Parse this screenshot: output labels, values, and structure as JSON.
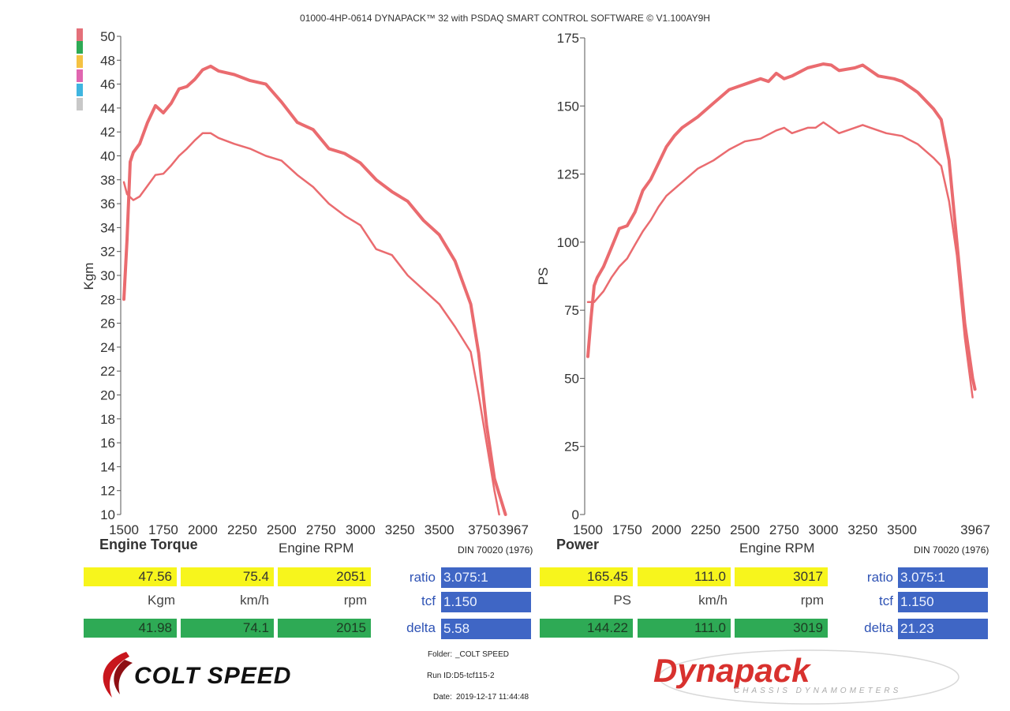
{
  "header": "01000-4HP-0614 DYNAPACK™ 32 with PSDAQ SMART CONTROL SOFTWARE © V1.100AY9H",
  "swatches": [
    "#e4707a",
    "#2eaa55",
    "#f5c243",
    "#e066b0",
    "#3fb5e0",
    "#c8c8c8"
  ],
  "colors": {
    "curve": "#ea6b6f",
    "yellow": "#f7f51c",
    "green": "#2eaa55",
    "blue": "#3f66c5"
  },
  "left": {
    "title": "Engine Torque",
    "xlabel": "Engine RPM",
    "din": "DIN 70020 (1976)",
    "row1": [
      "47.56",
      "75.4",
      "2051"
    ],
    "units": [
      "Kgm",
      "km/h",
      "rpm"
    ],
    "row2": [
      "41.98",
      "74.1",
      "2015"
    ],
    "info": {
      "ratio_label": "ratio",
      "ratio": "3.075:1",
      "tcf_label": "tcf",
      "tcf": "1.150",
      "delta_label": "delta",
      "delta": "5.58"
    }
  },
  "right": {
    "title": "Power",
    "xlabel": "Engine RPM",
    "din": "DIN 70020 (1976)",
    "row1": [
      "165.45",
      "111.0",
      "3017"
    ],
    "units": [
      "PS",
      "km/h",
      "rpm"
    ],
    "row2": [
      "144.22",
      "111.0",
      "3019"
    ],
    "info": {
      "ratio_label": "ratio",
      "ratio": "3.075:1",
      "tcf_label": "tcf",
      "tcf": "1.150",
      "delta_label": "delta",
      "delta": "21.23"
    }
  },
  "footer": {
    "folder_label": "Folder:",
    "folder": "_COLT SPEED",
    "run_label": "Run ID:",
    "run": "D5-tcf115-2",
    "date_label": "Date:",
    "date": "2019-12-17 11:44:48",
    "colt_logo": "COLT SPEED",
    "dyna_logo": "Dynapack",
    "dyna_tagline": "CHASSIS DYNAMOMETERS"
  },
  "chart_data": [
    {
      "type": "line",
      "ylabel": "Kgm",
      "xlabel": "Engine RPM",
      "xlim": [
        1500,
        3967
      ],
      "ylim": [
        10,
        50
      ],
      "xticks": [
        1500,
        1750,
        2000,
        2250,
        2500,
        2750,
        3000,
        3250,
        3500,
        3750,
        3967
      ],
      "yticks": [
        10,
        12,
        14,
        16,
        18,
        20,
        22,
        24,
        26,
        28,
        30,
        32,
        34,
        36,
        38,
        40,
        42,
        44,
        46,
        48,
        50
      ],
      "series": [
        {
          "values": [
            [
              1500,
              28.0
            ],
            [
              1520,
              33.0
            ],
            [
              1540,
              39.5
            ],
            [
              1560,
              40.3
            ],
            [
              1600,
              41.0
            ],
            [
              1650,
              42.8
            ],
            [
              1700,
              44.2
            ],
            [
              1750,
              43.6
            ],
            [
              1800,
              44.4
            ],
            [
              1850,
              45.6
            ],
            [
              1900,
              45.8
            ],
            [
              1950,
              46.4
            ],
            [
              2000,
              47.2
            ],
            [
              2050,
              47.5
            ],
            [
              2100,
              47.1
            ],
            [
              2200,
              46.8
            ],
            [
              2300,
              46.3
            ],
            [
              2400,
              46.0
            ],
            [
              2500,
              44.5
            ],
            [
              2600,
              42.8
            ],
            [
              2700,
              42.2
            ],
            [
              2800,
              40.6
            ],
            [
              2900,
              40.2
            ],
            [
              3000,
              39.4
            ],
            [
              3100,
              38.0
            ],
            [
              3200,
              37.0
            ],
            [
              3300,
              36.2
            ],
            [
              3400,
              34.6
            ],
            [
              3500,
              33.4
            ],
            [
              3600,
              31.2
            ],
            [
              3700,
              27.6
            ],
            [
              3750,
              23.5
            ],
            [
              3800,
              17.5
            ],
            [
              3850,
              13.0
            ],
            [
              3920,
              10.0
            ]
          ]
        },
        {
          "values": [
            [
              1500,
              37.8
            ],
            [
              1520,
              36.8
            ],
            [
              1560,
              36.3
            ],
            [
              1600,
              36.6
            ],
            [
              1650,
              37.5
            ],
            [
              1700,
              38.4
            ],
            [
              1750,
              38.5
            ],
            [
              1800,
              39.2
            ],
            [
              1850,
              40.0
            ],
            [
              1900,
              40.6
            ],
            [
              1950,
              41.3
            ],
            [
              2000,
              41.9
            ],
            [
              2050,
              41.9
            ],
            [
              2100,
              41.5
            ],
            [
              2200,
              41.0
            ],
            [
              2300,
              40.6
            ],
            [
              2400,
              40.0
            ],
            [
              2500,
              39.6
            ],
            [
              2600,
              38.4
            ],
            [
              2700,
              37.4
            ],
            [
              2800,
              36.0
            ],
            [
              2900,
              35.0
            ],
            [
              3000,
              34.2
            ],
            [
              3100,
              32.2
            ],
            [
              3200,
              31.7
            ],
            [
              3300,
              30.0
            ],
            [
              3400,
              28.8
            ],
            [
              3500,
              27.6
            ],
            [
              3600,
              25.7
            ],
            [
              3700,
              23.6
            ],
            [
              3750,
              20.0
            ],
            [
              3800,
              16.0
            ],
            [
              3850,
              12.0
            ],
            [
              3880,
              10.0
            ]
          ]
        }
      ]
    },
    {
      "type": "line",
      "ylabel": "PS",
      "xlabel": "Engine RPM",
      "xlim": [
        1500,
        3967
      ],
      "ylim": [
        0,
        175
      ],
      "xticks": [
        1500,
        1750,
        2000,
        2250,
        2500,
        2750,
        3000,
        3250,
        3500,
        3967
      ],
      "yticks": [
        0,
        25,
        50,
        75,
        100,
        125,
        150,
        175
      ],
      "series": [
        {
          "values": [
            [
              1500,
              58
            ],
            [
              1520,
              72
            ],
            [
              1540,
              84
            ],
            [
              1560,
              87
            ],
            [
              1600,
              91
            ],
            [
              1650,
              98
            ],
            [
              1700,
              105
            ],
            [
              1750,
              106
            ],
            [
              1800,
              111
            ],
            [
              1850,
              119
            ],
            [
              1900,
              123
            ],
            [
              1950,
              129
            ],
            [
              2000,
              135
            ],
            [
              2050,
              139
            ],
            [
              2100,
              142
            ],
            [
              2200,
              146
            ],
            [
              2300,
              151
            ],
            [
              2400,
              156
            ],
            [
              2450,
              157
            ],
            [
              2500,
              158
            ],
            [
              2550,
              159
            ],
            [
              2600,
              160
            ],
            [
              2650,
              159
            ],
            [
              2700,
              162
            ],
            [
              2750,
              160
            ],
            [
              2800,
              161
            ],
            [
              2900,
              164
            ],
            [
              3000,
              165.4
            ],
            [
              3050,
              165
            ],
            [
              3100,
              163
            ],
            [
              3200,
              164
            ],
            [
              3250,
              165
            ],
            [
              3300,
              163
            ],
            [
              3350,
              161
            ],
            [
              3450,
              160
            ],
            [
              3500,
              159
            ],
            [
              3600,
              155
            ],
            [
              3700,
              149
            ],
            [
              3750,
              145
            ],
            [
              3800,
              130
            ],
            [
              3850,
              100
            ],
            [
              3900,
              70
            ],
            [
              3950,
              50
            ],
            [
              3965,
              46
            ]
          ]
        },
        {
          "values": [
            [
              1500,
              78
            ],
            [
              1540,
              78
            ],
            [
              1600,
              82
            ],
            [
              1650,
              87
            ],
            [
              1700,
              91
            ],
            [
              1750,
              94
            ],
            [
              1800,
              99
            ],
            [
              1850,
              104
            ],
            [
              1900,
              108
            ],
            [
              1950,
              113
            ],
            [
              2000,
              117
            ],
            [
              2100,
              122
            ],
            [
              2200,
              127
            ],
            [
              2300,
              130
            ],
            [
              2400,
              134
            ],
            [
              2500,
              137
            ],
            [
              2600,
              138
            ],
            [
              2700,
              141
            ],
            [
              2750,
              142
            ],
            [
              2800,
              140
            ],
            [
              2850,
              141
            ],
            [
              2900,
              142
            ],
            [
              2950,
              142
            ],
            [
              3000,
              144
            ],
            [
              3050,
              142
            ],
            [
              3100,
              140
            ],
            [
              3200,
              142
            ],
            [
              3250,
              143
            ],
            [
              3300,
              142
            ],
            [
              3400,
              140
            ],
            [
              3500,
              139
            ],
            [
              3600,
              136
            ],
            [
              3700,
              131
            ],
            [
              3750,
              128
            ],
            [
              3800,
              115
            ],
            [
              3850,
              95
            ],
            [
              3900,
              65
            ],
            [
              3950,
              43
            ]
          ]
        }
      ]
    }
  ]
}
